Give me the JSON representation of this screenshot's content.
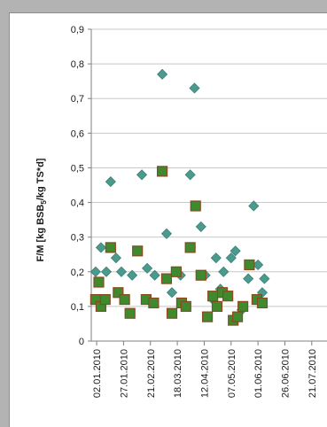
{
  "chart_data": {
    "type": "scatter",
    "ylabel_main": "F/M  [kg BSB",
    "ylabel_sub": "5",
    "ylabel_rest": "/kg TS*d]",
    "ylim": [
      0,
      0.9
    ],
    "yticks": [
      "0",
      "0,1",
      "0,2",
      "0,3",
      "0,4",
      "0,5",
      "0,6",
      "0,7",
      "0,8",
      "0,9"
    ],
    "xrange": [
      "2009-12-28",
      "2010-08-05"
    ],
    "xticks": [
      "02.01.2010",
      "27.01.2010",
      "21.02.2010",
      "18.03.2010",
      "12.04.2010",
      "07.05.2010",
      "01.06.2010",
      "26.06.2010",
      "21.07.2010"
    ],
    "grid": true,
    "series": [
      {
        "marker": "diamond",
        "color": "#4a9b8e",
        "points": [
          [
            "2010-01-01",
            0.2
          ],
          [
            "2010-01-06",
            0.27
          ],
          [
            "2010-01-11",
            0.2
          ],
          [
            "2010-01-15",
            0.46
          ],
          [
            "2010-01-20",
            0.24
          ],
          [
            "2010-01-25",
            0.2
          ],
          [
            "2010-02-04",
            0.19
          ],
          [
            "2010-02-13",
            0.48
          ],
          [
            "2010-02-18",
            0.21
          ],
          [
            "2010-02-25",
            0.19
          ],
          [
            "2010-03-04",
            0.77
          ],
          [
            "2010-03-08",
            0.31
          ],
          [
            "2010-03-13",
            0.14
          ],
          [
            "2010-03-17",
            0.2
          ],
          [
            "2010-03-21",
            0.19
          ],
          [
            "2010-03-30",
            0.48
          ],
          [
            "2010-04-03",
            0.73
          ],
          [
            "2010-04-09",
            0.33
          ],
          [
            "2010-04-13",
            0.19
          ],
          [
            "2010-04-20",
            0.12
          ],
          [
            "2010-04-23",
            0.24
          ],
          [
            "2010-04-27",
            0.15
          ],
          [
            "2010-04-30",
            0.2
          ],
          [
            "2010-05-07",
            0.24
          ],
          [
            "2010-05-11",
            0.26
          ],
          [
            "2010-05-17",
            0.09
          ],
          [
            "2010-05-23",
            0.18
          ],
          [
            "2010-05-28",
            0.39
          ],
          [
            "2010-06-01",
            0.22
          ],
          [
            "2010-06-05",
            0.14
          ],
          [
            "2010-06-07",
            0.18
          ]
        ]
      },
      {
        "marker": "square",
        "color": "#3f8a2e",
        "points": [
          [
            "2010-01-01",
            0.12
          ],
          [
            "2010-01-04",
            0.17
          ],
          [
            "2010-01-06",
            0.1
          ],
          [
            "2010-01-10",
            0.12
          ],
          [
            "2010-01-15",
            0.27
          ],
          [
            "2010-01-22",
            0.14
          ],
          [
            "2010-01-28",
            0.12
          ],
          [
            "2010-02-02",
            0.08
          ],
          [
            "2010-02-09",
            0.26
          ],
          [
            "2010-02-17",
            0.12
          ],
          [
            "2010-02-24",
            0.11
          ],
          [
            "2010-03-04",
            0.49
          ],
          [
            "2010-03-08",
            0.18
          ],
          [
            "2010-03-13",
            0.08
          ],
          [
            "2010-03-17",
            0.2
          ],
          [
            "2010-03-22",
            0.11
          ],
          [
            "2010-03-26",
            0.1
          ],
          [
            "2010-03-30",
            0.27
          ],
          [
            "2010-04-04",
            0.39
          ],
          [
            "2010-04-09",
            0.19
          ],
          [
            "2010-04-15",
            0.07
          ],
          [
            "2010-04-20",
            0.13
          ],
          [
            "2010-04-24",
            0.1
          ],
          [
            "2010-04-29",
            0.14
          ],
          [
            "2010-05-04",
            0.13
          ],
          [
            "2010-05-09",
            0.06
          ],
          [
            "2010-05-13",
            0.07
          ],
          [
            "2010-05-18",
            0.1
          ],
          [
            "2010-05-24",
            0.22
          ],
          [
            "2010-05-31",
            0.12
          ],
          [
            "2010-06-05",
            0.11
          ]
        ]
      }
    ]
  }
}
